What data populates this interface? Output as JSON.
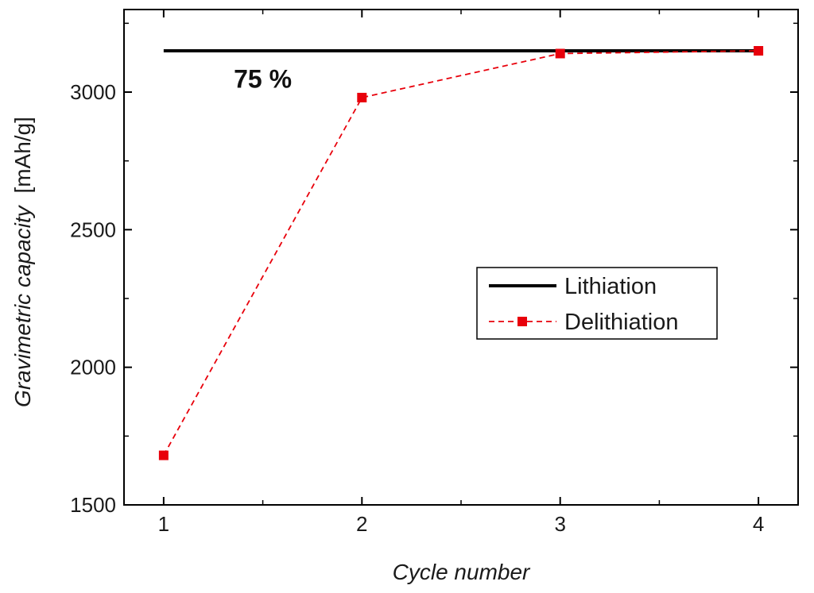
{
  "chart_data": {
    "type": "line",
    "title": "",
    "xlabel": "Cycle number",
    "ylabel_italic": "Gravimetric capacity",
    "ylabel_unit": "[mAh/g]",
    "xlim": [
      0.8,
      4.2
    ],
    "ylim": [
      1500,
      3300
    ],
    "x_ticks": [
      1,
      2,
      3,
      4
    ],
    "x_minor_ticks": [
      1.5,
      2.5,
      3.5
    ],
    "y_ticks": [
      1500,
      2000,
      2500,
      3000
    ],
    "y_minor_ticks": [
      1750,
      2250,
      2750,
      3250
    ],
    "grid": false,
    "legend_position": "center-right",
    "series": [
      {
        "name": "Lithiation",
        "x": [
          1,
          4
        ],
        "y": [
          3150,
          3150
        ],
        "color": "#000000",
        "style": "solid",
        "marker": "none"
      },
      {
        "name": "Delithiation",
        "x": [
          1,
          2,
          3,
          4
        ],
        "y": [
          1680,
          2980,
          3140,
          3150
        ],
        "color": "#e8000b",
        "style": "dashed",
        "marker": "square"
      }
    ],
    "annotations": [
      {
        "text": "75 %",
        "x": 1.5,
        "y": 3050
      }
    ]
  }
}
